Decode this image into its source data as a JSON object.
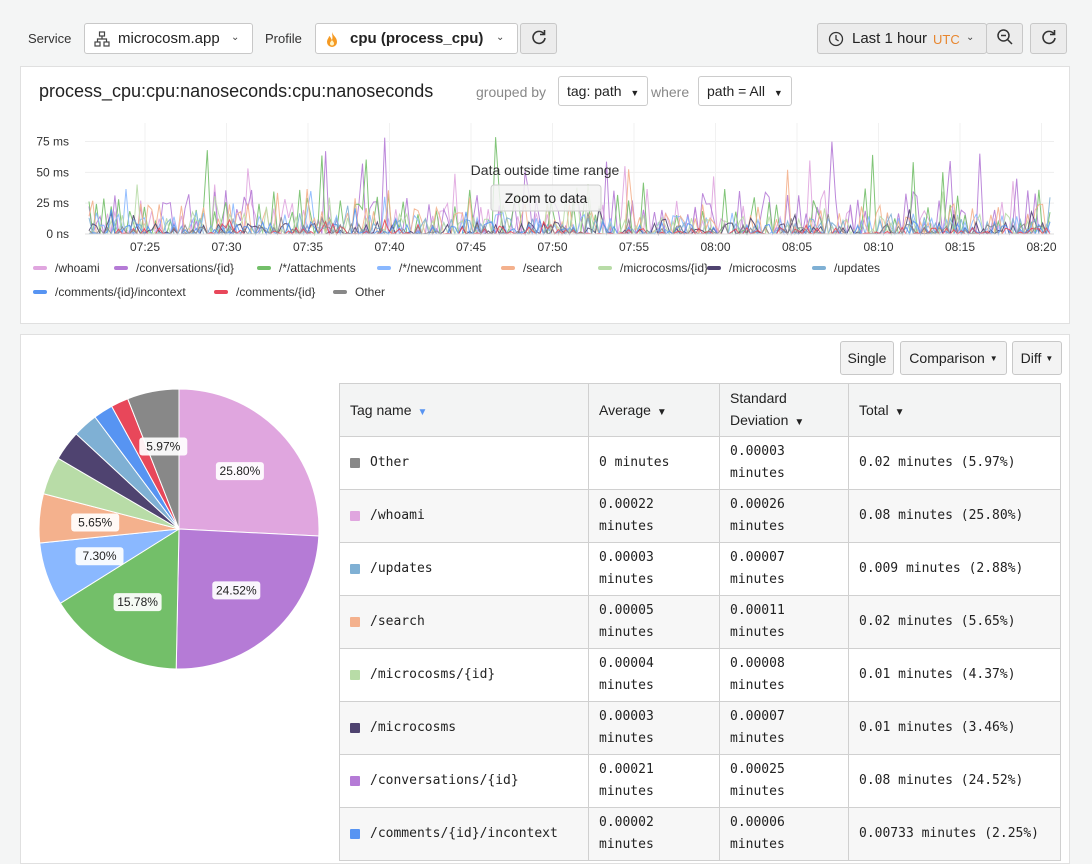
{
  "toolbar": {
    "service_label": "Service",
    "service_value": "microcosm.app",
    "profile_label": "Profile",
    "profile_value": "cpu (process_cpu)",
    "time_range": "Last 1 hour",
    "timezone": "UTC",
    "icons": [
      "hierarchy-icon",
      "flame-icon",
      "refresh-icon",
      "clock-icon",
      "zoom-out-icon",
      "refresh-icon"
    ]
  },
  "timeseries": {
    "title": "process_cpu:cpu:nanoseconds:cpu:nanoseconds",
    "grouped_by_label": "grouped by",
    "group_select": "tag: path",
    "where_label": "where",
    "where_select": "path = All",
    "overlay_text": "Data outside time range",
    "zoom_button": "Zoom to data",
    "legend": [
      {
        "name": "/whoami",
        "color": "#e0a6df"
      },
      {
        "name": "/conversations/{id}",
        "color": "#b57bd6"
      },
      {
        "name": "/*/attachments",
        "color": "#73bf69"
      },
      {
        "name": "/*/newcomment",
        "color": "#8ab8ff"
      },
      {
        "name": "/search",
        "color": "#f4b18d"
      },
      {
        "name": "/microcosms/{id}",
        "color": "#b8dca7"
      },
      {
        "name": "/microcosms",
        "color": "#4f4370"
      },
      {
        "name": "/updates",
        "color": "#7fb0d4"
      },
      {
        "name": "/comments/{id}/incontext",
        "color": "#5794f2"
      },
      {
        "name": "/comments/{id}",
        "color": "#e8475a"
      },
      {
        "name": "Other",
        "color": "#888888"
      }
    ]
  },
  "chart_data": [
    {
      "type": "line",
      "y_ticks": [
        "75 ms",
        "50 ms",
        "25 ms",
        "0 ns"
      ],
      "ylim": [
        0,
        90
      ],
      "x_ticks": [
        "07:25",
        "07:30",
        "07:35",
        "07:40",
        "07:45",
        "07:50",
        "07:55",
        "08:00",
        "08:05",
        "08:10",
        "08:15",
        "08:20"
      ]
    },
    {
      "type": "pie",
      "slices": [
        {
          "name": "/whoami",
          "value": 25.8,
          "label": "25.80%",
          "color": "#e0a6df"
        },
        {
          "name": "/conversations/{id}",
          "value": 24.52,
          "label": "24.52%",
          "color": "#b57bd6"
        },
        {
          "name": "/*/attachments",
          "value": 15.78,
          "label": "15.78%",
          "color": "#73bf69"
        },
        {
          "name": "/*/newcomment",
          "value": 7.3,
          "label": "7.30%",
          "color": "#8ab8ff"
        },
        {
          "name": "/search",
          "value": 5.65,
          "label": "5.65%",
          "color": "#f4b18d"
        },
        {
          "name": "/microcosms/{id}",
          "value": 4.37,
          "label": "",
          "color": "#b8dca7"
        },
        {
          "name": "/microcosms",
          "value": 3.46,
          "label": "",
          "color": "#4f4370"
        },
        {
          "name": "/updates",
          "value": 2.88,
          "label": "",
          "color": "#7fb0d4"
        },
        {
          "name": "/comments/{id}/incontext",
          "value": 2.25,
          "label": "",
          "color": "#5794f2"
        },
        {
          "name": "/comments/{id}",
          "value": 2.02,
          "label": "",
          "color": "#e8475a"
        },
        {
          "name": "Other",
          "value": 5.97,
          "label": "5.97%",
          "color": "#888888"
        }
      ]
    }
  ],
  "view_modes": {
    "single": "Single",
    "comparison": "Comparison",
    "diff": "Diff"
  },
  "table": {
    "headers": {
      "tag": "Tag name",
      "average": "Average",
      "std": "Standard Deviation",
      "total": "Total"
    },
    "rows": [
      {
        "tag": "Other",
        "color": "#888888",
        "avg": "0 minutes",
        "std": "0.00003 minutes",
        "total": "0.02 minutes (5.97%)"
      },
      {
        "tag": "/whoami",
        "color": "#e0a6df",
        "avg": "0.00022 minutes",
        "std": "0.00026 minutes",
        "total": "0.08 minutes (25.80%)"
      },
      {
        "tag": "/updates",
        "color": "#7fb0d4",
        "avg": "0.00003 minutes",
        "std": "0.00007 minutes",
        "total": "0.009 minutes (2.88%)"
      },
      {
        "tag": "/search",
        "color": "#f4b18d",
        "avg": "0.00005 minutes",
        "std": "0.00011 minutes",
        "total": "0.02 minutes (5.65%)"
      },
      {
        "tag": "/microcosms/{id}",
        "color": "#b8dca7",
        "avg": "0.00004 minutes",
        "std": "0.00008 minutes",
        "total": "0.01 minutes (4.37%)"
      },
      {
        "tag": "/microcosms",
        "color": "#4f4370",
        "avg": "0.00003 minutes",
        "std": "0.00007 minutes",
        "total": "0.01 minutes (3.46%)"
      },
      {
        "tag": "/conversations/{id}",
        "color": "#b57bd6",
        "avg": "0.00021 minutes",
        "std": "0.00025 minutes",
        "total": "0.08 minutes (24.52%)"
      },
      {
        "tag": "/comments/{id}/incontext",
        "color": "#5794f2",
        "avg": "0.00002 minutes",
        "std": "0.00006 minutes",
        "total": "0.00733 minutes (2.25%)"
      }
    ]
  }
}
